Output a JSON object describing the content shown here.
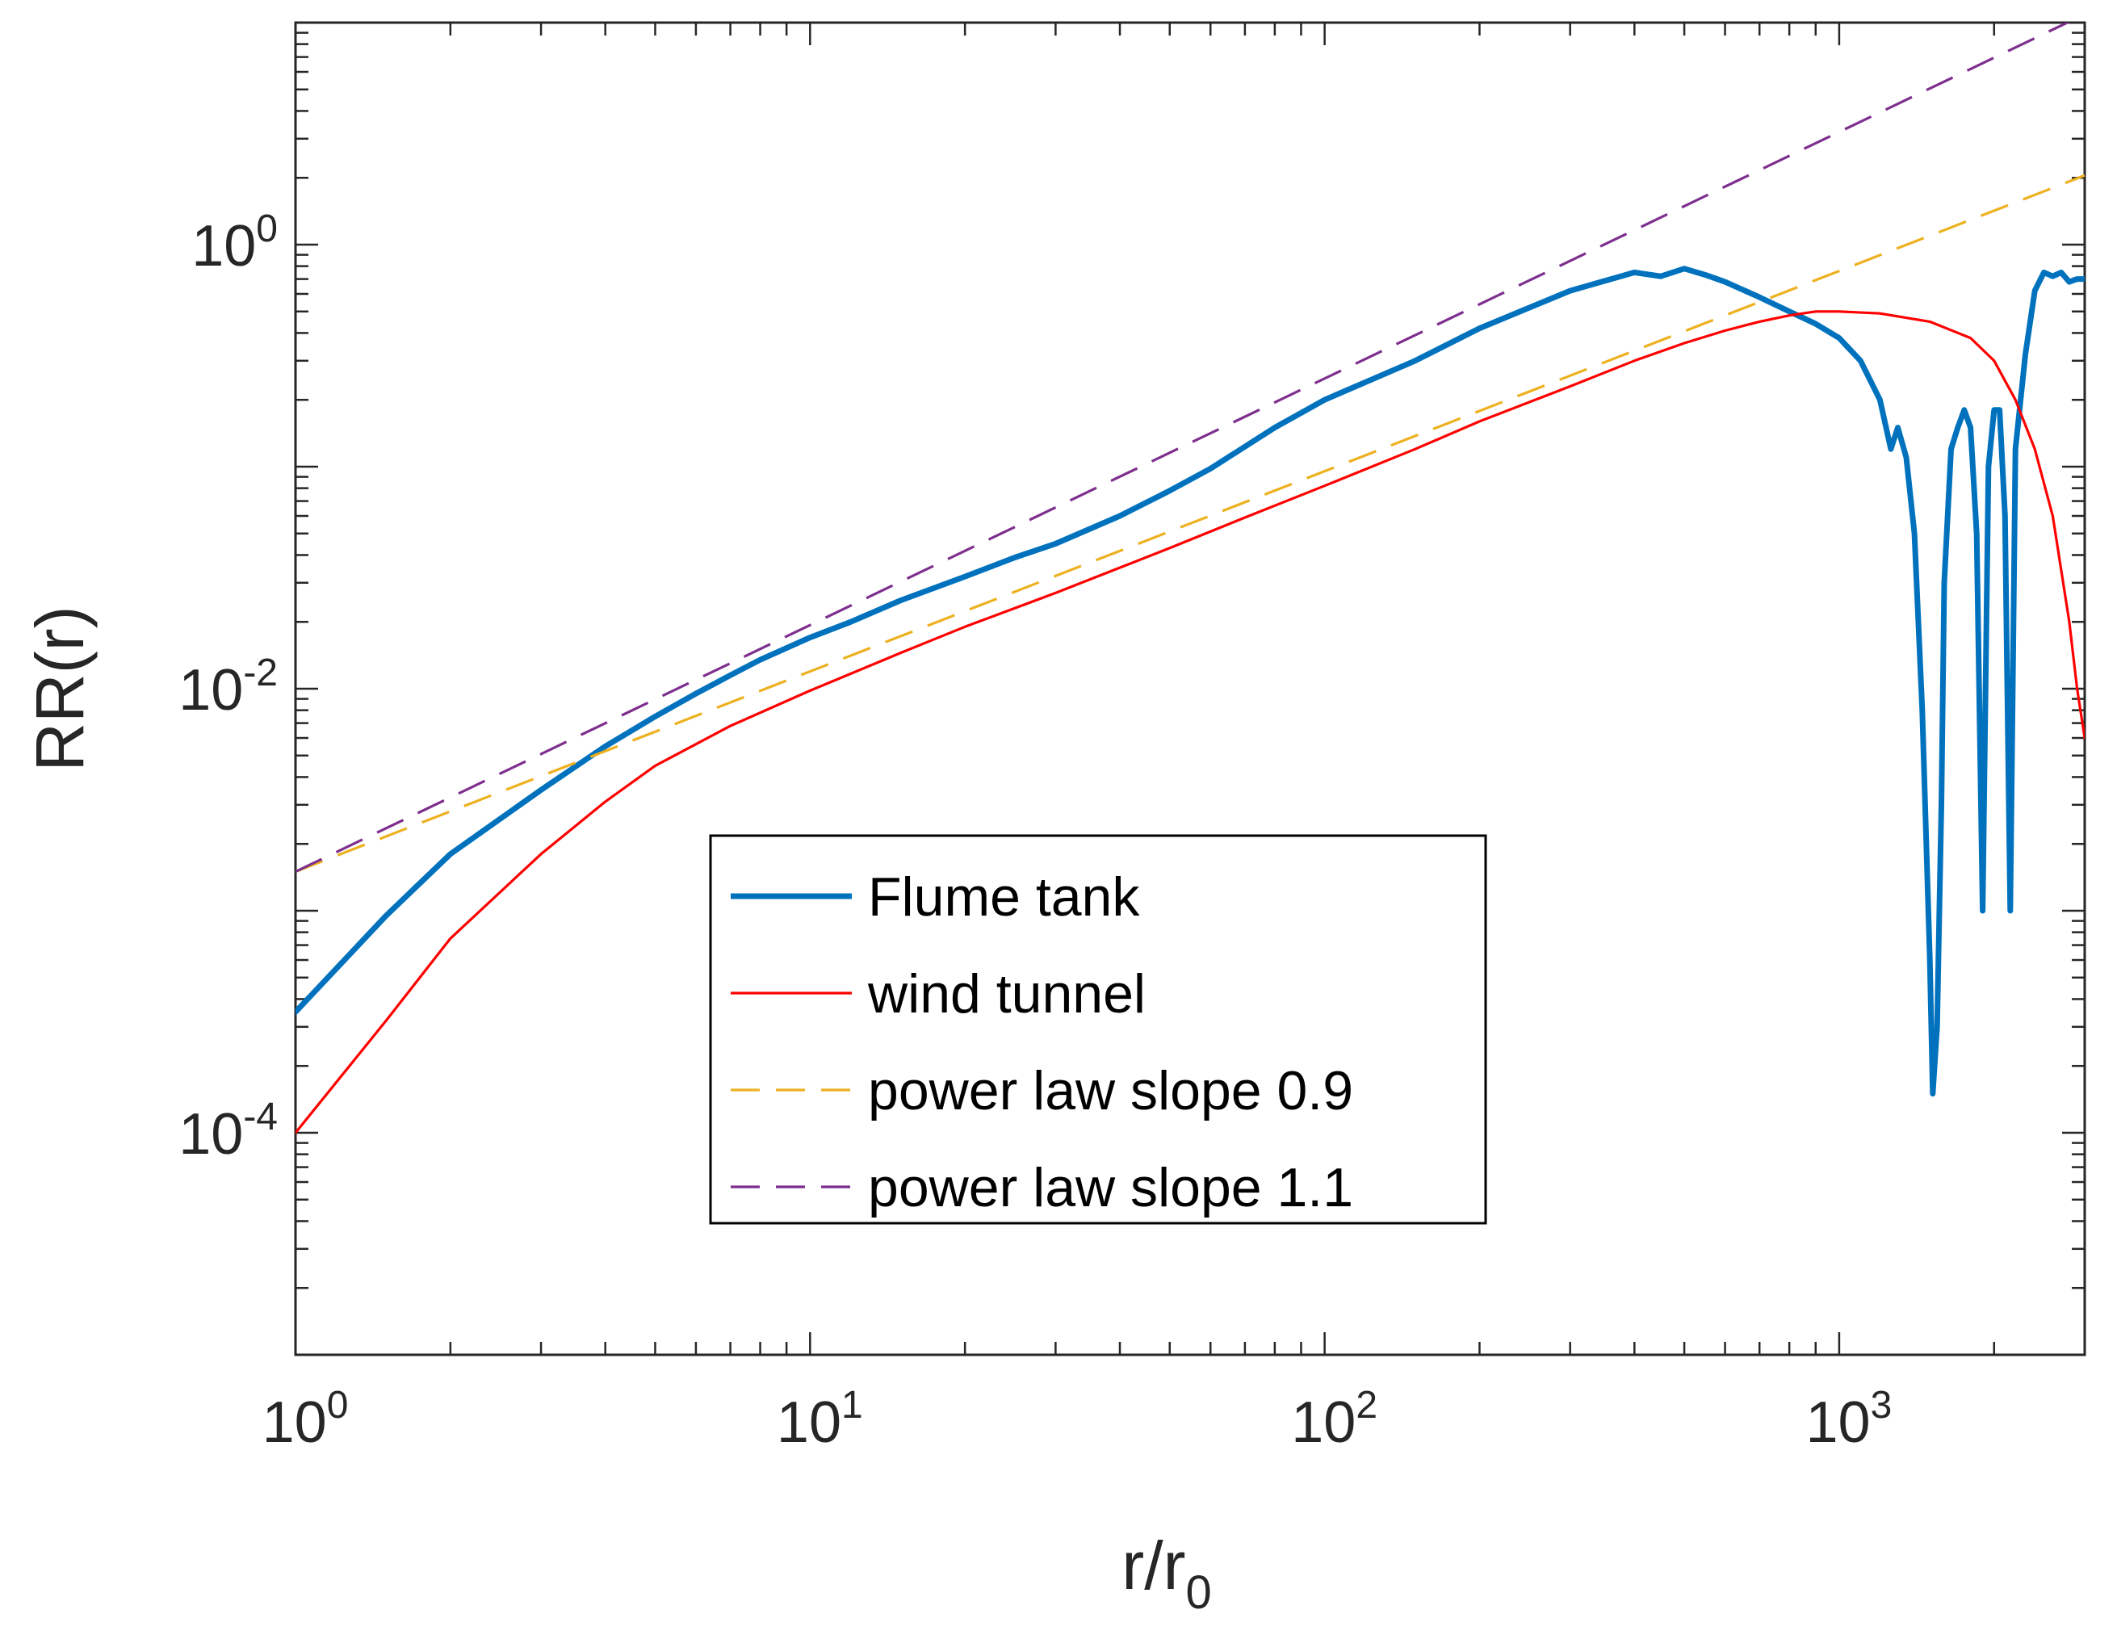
{
  "chart_data": {
    "type": "line",
    "title": "",
    "xlabel": "r/r",
    "xlabel_sub": "0",
    "ylabel": "RR(r)",
    "xscale": "log",
    "yscale": "log",
    "xlim": [
      1,
      3000
    ],
    "ylim": [
      1e-05,
      10
    ],
    "grid": false,
    "legend_position": "center-left",
    "x_ticks": [
      {
        "value": 1,
        "base": "10",
        "exp": "0"
      },
      {
        "value": 10,
        "base": "10",
        "exp": "1"
      },
      {
        "value": 100,
        "base": "10",
        "exp": "2"
      },
      {
        "value": 1000,
        "base": "10",
        "exp": "3"
      }
    ],
    "y_ticks": [
      {
        "value": 0.0001,
        "base": "10",
        "exp": "-4"
      },
      {
        "value": 0.01,
        "base": "10",
        "exp": "-2"
      },
      {
        "value": 1,
        "base": "10",
        "exp": "0"
      }
    ],
    "series": [
      {
        "name": "Flume tank",
        "color": "#0072BD",
        "style": "solid",
        "weight": "thick",
        "x": [
          1,
          1.5,
          2,
          3,
          4,
          5,
          6,
          7,
          8,
          10,
          12,
          15,
          20,
          25,
          30,
          40,
          50,
          60,
          80,
          100,
          150,
          200,
          300,
          400,
          450,
          500,
          550,
          600,
          700,
          800,
          900,
          1000,
          1100,
          1200,
          1260,
          1300,
          1350,
          1400,
          1450,
          1500,
          1520,
          1550,
          1580,
          1600,
          1650,
          1700,
          1750,
          1800,
          1850,
          1900,
          1950,
          2000,
          2050,
          2100,
          2150,
          2200,
          2300,
          2400,
          2500,
          2600,
          2700,
          2800,
          2900,
          3000
        ],
        "y": [
          0.00035,
          0.00095,
          0.0018,
          0.0035,
          0.0055,
          0.0075,
          0.0095,
          0.0115,
          0.0135,
          0.017,
          0.02,
          0.025,
          0.032,
          0.039,
          0.045,
          0.06,
          0.078,
          0.098,
          0.15,
          0.2,
          0.3,
          0.42,
          0.62,
          0.75,
          0.72,
          0.78,
          0.73,
          0.68,
          0.58,
          0.5,
          0.44,
          0.38,
          0.3,
          0.2,
          0.12,
          0.15,
          0.11,
          0.05,
          0.008,
          0.0006,
          0.00015,
          0.0003,
          0.003,
          0.03,
          0.12,
          0.15,
          0.18,
          0.15,
          0.05,
          0.001,
          0.1,
          0.18,
          0.18,
          0.06,
          0.001,
          0.12,
          0.32,
          0.62,
          0.75,
          0.72,
          0.75,
          0.68,
          0.7,
          0.7
        ]
      },
      {
        "name": "wind tunnel",
        "color": "#FF0000",
        "style": "solid",
        "weight": "thin",
        "x": [
          1,
          1.5,
          2,
          3,
          4,
          5,
          7,
          10,
          15,
          20,
          30,
          50,
          70,
          100,
          150,
          200,
          300,
          400,
          500,
          600,
          700,
          800,
          900,
          1000,
          1200,
          1500,
          1800,
          2000,
          2200,
          2400,
          2600,
          2800,
          2900,
          3000
        ],
        "y": [
          0.0001,
          0.00032,
          0.00075,
          0.0018,
          0.0031,
          0.0045,
          0.0068,
          0.0098,
          0.0145,
          0.019,
          0.027,
          0.043,
          0.059,
          0.082,
          0.12,
          0.16,
          0.23,
          0.3,
          0.36,
          0.41,
          0.45,
          0.48,
          0.5,
          0.5,
          0.49,
          0.45,
          0.38,
          0.3,
          0.2,
          0.12,
          0.06,
          0.02,
          0.01,
          0.006
        ]
      },
      {
        "name": "power law slope 0.9",
        "color": "#EDB120",
        "style": "dashed",
        "weight": "thin",
        "x": [
          1,
          3000
        ],
        "y": [
          0.0015,
          2.05
        ]
      },
      {
        "name": "power law slope 1.1",
        "color": "#7E2F8E",
        "style": "dashed",
        "weight": "thin",
        "x": [
          1,
          3000
        ],
        "y": [
          0.0015,
          10.9
        ]
      }
    ]
  }
}
